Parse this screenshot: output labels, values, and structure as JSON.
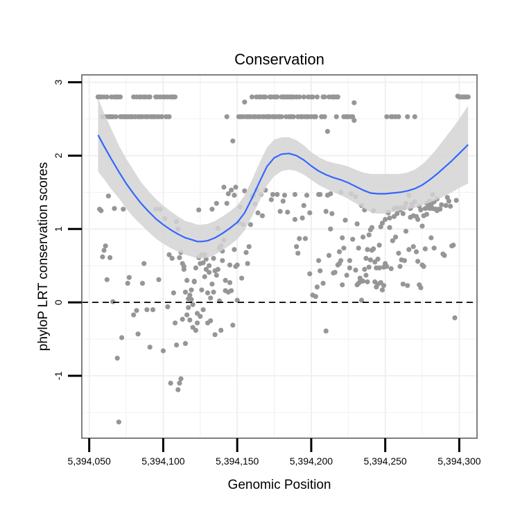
{
  "chart_data": {
    "type": "scatter",
    "title": "Conservation",
    "xlabel": "Genomic Position",
    "ylabel": "phyloP LRT conservation scores",
    "xlim": [
      5394045,
      5394312
    ],
    "ylim": [
      -1.85,
      3.1
    ],
    "x_ticks": [
      5394050,
      5394100,
      5394150,
      5394200,
      5394250,
      5394300
    ],
    "x_tick_labels": [
      "5,394,050",
      "5,394,100",
      "5,394,150",
      "5,394,200",
      "5,394,250",
      "5,394,300"
    ],
    "y_ticks": [
      -1,
      0,
      1,
      2,
      3
    ],
    "y_tick_labels": [
      "-1",
      "0",
      "1",
      "2",
      "3"
    ],
    "reference_line": {
      "y": 0,
      "style": "dashed"
    },
    "colors": {
      "points": "#969696",
      "smooth_line": "#3366ff",
      "confidence_band": "#d3d3d3",
      "grid": "#f0f0f0",
      "panel_border": "#7f7f7f"
    },
    "points_x": [
      5394056,
      5394057,
      5394058,
      5394059,
      5394060,
      5394061,
      5394062,
      5394063,
      5394064,
      5394065,
      5394066,
      5394067,
      5394068,
      5394069,
      5394070,
      5394071,
      5394072,
      5394073,
      5394074,
      5394075,
      5394076,
      5394077,
      5394078,
      5394079,
      5394080,
      5394081,
      5394082,
      5394083,
      5394084,
      5394085,
      5394086,
      5394087,
      5394088,
      5394089,
      5394090,
      5394091,
      5394092,
      5394093,
      5394094,
      5394095,
      5394096,
      5394097,
      5394098,
      5394099,
      5394100,
      5394101,
      5394102,
      5394103,
      5394104,
      5394105,
      5394106,
      5394107,
      5394108,
      5394109,
      5394110,
      5394111,
      5394112,
      5394113,
      5394114,
      5394115,
      5394116,
      5394117,
      5394118,
      5394119,
      5394120,
      5394121,
      5394122,
      5394123,
      5394124,
      5394125,
      5394126,
      5394127,
      5394128,
      5394129,
      5394130,
      5394131,
      5394132,
      5394133,
      5394134,
      5394135,
      5394136,
      5394137,
      5394138,
      5394139,
      5394140,
      5394141,
      5394142,
      5394143,
      5394144,
      5394145,
      5394146,
      5394147,
      5394148,
      5394149,
      5394150,
      5394151,
      5394152,
      5394153,
      5394154,
      5394155,
      5394156,
      5394157,
      5394158,
      5394159,
      5394160,
      5394161,
      5394162,
      5394163,
      5394164,
      5394165,
      5394166,
      5394167,
      5394168,
      5394169,
      5394170,
      5394171,
      5394172,
      5394173,
      5394174,
      5394175,
      5394176,
      5394177,
      5394178,
      5394179,
      5394180,
      5394181,
      5394182,
      5394183,
      5394184,
      5394185,
      5394186,
      5394187,
      5394188,
      5394189,
      5394190,
      5394191,
      5394192,
      5394193,
      5394194,
      5394195,
      5394196,
      5394197,
      5394198,
      5394199,
      5394200,
      5394201,
      5394202,
      5394203,
      5394204,
      5394205,
      5394206,
      5394207,
      5394208,
      5394209,
      5394210,
      5394211,
      5394212,
      5394213,
      5394214,
      5394215,
      5394216,
      5394217,
      5394218,
      5394219,
      5394220,
      5394221,
      5394222,
      5394223,
      5394224,
      5394225,
      5394226,
      5394227,
      5394228,
      5394229,
      5394230,
      5394231,
      5394232,
      5394233,
      5394234,
      5394235,
      5394236,
      5394237,
      5394238,
      5394239,
      5394240,
      5394241,
      5394242,
      5394243,
      5394244,
      5394245,
      5394246,
      5394247,
      5394248,
      5394249,
      5394250,
      5394251,
      5394252,
      5394253,
      5394254,
      5394255,
      5394256,
      5394257,
      5394258,
      5394259,
      5394260,
      5394261,
      5394262,
      5394263,
      5394264,
      5394265,
      5394266,
      5394267,
      5394268,
      5394269,
      5394270,
      5394271,
      5394272,
      5394273,
      5394274,
      5394275,
      5394276,
      5394277,
      5394278,
      5394279,
      5394280,
      5394281,
      5394282,
      5394283,
      5394284,
      5394285,
      5394286,
      5394287,
      5394288,
      5394289,
      5394290,
      5394291,
      5394292,
      5394293,
      5394294,
      5394295,
      5394296,
      5394297,
      5394298,
      5394299,
      5394300,
      5394301,
      5394302,
      5394303,
      5394304,
      5394305,
      5394306,
      5394056,
      5394057,
      5394058,
      5394059,
      5394060,
      5394061,
      5394062,
      5394063,
      5394064,
      5394065,
      5394066,
      5394067,
      5394068,
      5394069,
      5394070,
      5394071,
      5394072,
      5394073,
      5394074,
      5394075,
      5394076,
      5394077,
      5394078,
      5394079,
      5394080,
      5394081,
      5394082,
      5394083,
      5394084,
      5394085,
      5394086,
      5394087,
      5394088,
      5394089,
      5394090,
      5394091,
      5394092,
      5394093,
      5394094,
      5394095,
      5394096,
      5394097,
      5394098,
      5394099,
      5394100,
      5394101,
      5394102,
      5394103,
      5394104,
      5394105,
      5394106,
      5394107,
      5394108,
      5394109,
      5394110,
      5394111,
      5394112,
      5394113,
      5394114,
      5394115,
      5394116,
      5394117,
      5394118,
      5394119,
      5394120,
      5394121,
      5394122,
      5394123,
      5394124,
      5394125,
      5394126,
      5394127,
      5394128,
      5394129,
      5394130,
      5394131,
      5394132,
      5394133,
      5394134,
      5394135,
      5394136,
      5394137,
      5394138,
      5394139,
      5394140,
      5394141,
      5394142,
      5394143,
      5394144,
      5394145,
      5394146,
      5394147,
      5394148,
      5394149,
      5394150,
      5394151,
      5394152,
      5394153,
      5394154,
      5394155,
      5394156,
      5394157,
      5394158,
      5394159,
      5394160,
      5394161,
      5394162,
      5394163,
      5394164,
      5394165,
      5394166,
      5394167,
      5394168,
      5394169,
      5394170,
      5394171,
      5394172,
      5394173,
      5394174,
      5394175,
      5394176,
      5394177,
      5394178,
      5394179,
      5394180,
      5394181,
      5394182,
      5394183,
      5394184,
      5394185,
      5394186,
      5394187,
      5394188,
      5394189,
      5394190,
      5394191,
      5394192,
      5394193,
      5394194,
      5394195,
      5394196,
      5394197,
      5394198,
      5394199,
      5394200,
      5394201,
      5394202,
      5394203,
      5394204,
      5394205,
      5394206,
      5394207,
      5394208,
      5394209,
      5394210,
      5394211,
      5394212,
      5394213,
      5394214,
      5394215,
      5394216,
      5394217,
      5394218,
      5394219,
      5394220,
      5394221,
      5394222,
      5394223,
      5394224,
      5394225,
      5394226,
      5394227,
      5394228,
      5394229,
      5394230,
      5394231,
      5394232,
      5394233,
      5394234,
      5394235,
      5394236,
      5394237,
      5394238,
      5394239,
      5394240,
      5394241,
      5394242,
      5394243,
      5394244,
      5394245,
      5394246,
      5394247,
      5394248,
      5394249,
      5394250,
      5394251,
      5394252,
      5394253,
      5394254,
      5394255,
      5394256,
      5394257,
      5394258,
      5394259,
      5394260,
      5394261,
      5394262,
      5394263,
      5394264,
      5394265,
      5394266,
      5394267,
      5394268,
      5394269,
      5394270,
      5394271,
      5394272,
      5394273,
      5394274,
      5394275,
      5394276,
      5394277,
      5394278,
      5394279,
      5394280,
      5394281,
      5394282,
      5394283,
      5394284,
      5394285,
      5394286,
      5394287,
      5394288,
      5394289,
      5394290,
      5394291,
      5394292,
      5394293,
      5394294,
      5394295,
      5394296,
      5394297,
      5394298,
      5394299,
      5394300,
      5394301,
      5394302,
      5394303,
      5394304,
      5394305,
      5394306
    ],
    "points_y": [
      2.8,
      2.8,
      2.8,
      2.53,
      2.8,
      2.53,
      2.8,
      2.53,
      2.53,
      2.8,
      2.53,
      2.8,
      2.8,
      2.8,
      2.8,
      2.8,
      2.53,
      2.53,
      2.53,
      2.53,
      2.53,
      2.53,
      2.53,
      2.53,
      2.8,
      2.53,
      2.8,
      2.53,
      2.8,
      2.8,
      2.53,
      2.8,
      2.8,
      2.53,
      2.8,
      2.8,
      2.53,
      2.53,
      2.53,
      2.8,
      2.8,
      2.53,
      2.8,
      2.53,
      2.8,
      2.8,
      2.53,
      2.8,
      2.53,
      2.8,
      2.8,
      2.8,
      2.8,
      1.1,
      1.0,
      -1.1,
      0.68,
      0.53,
      0.49,
      0.14,
      0.3,
      -0.07,
      -0.24,
      0.17,
      -0.03,
      0.28,
      0.47,
      -0.15,
      0.61,
      -0.19,
      0.17,
      0.54,
      0.35,
      0.45,
      -0.28,
      0.41,
      0.06,
      0.25,
      0.14,
      -0.44,
      0.37,
      0.45,
      0.02,
      -0.38,
      0.57,
      0.85,
      0.16,
      1.35,
      0.14,
      0.51,
      0.16,
      -0.31,
      0.72,
      0.49,
      0.51,
      1.09,
      1.3,
      0.33,
      1.06,
      2.73,
      0.68,
      0.53,
      0.76,
      1.06,
      2.8,
      1.46,
      1.34,
      2.8,
      1.22,
      2.8,
      2.8,
      1.18,
      2.8,
      2.8,
      2.53,
      2.53,
      2.8,
      2.8,
      1.47,
      2.8,
      2.8,
      2.8,
      2.53,
      2.53,
      2.8,
      2.8,
      2.8,
      2.8,
      2.8,
      2.8,
      2.8,
      2.8,
      2.8,
      1.47,
      2.8,
      2.53,
      2.8,
      2.53,
      1.15,
      2.8,
      2.53,
      1.46,
      2.8,
      1.22,
      2.8,
      2.8,
      2.53,
      2.53,
      2.8,
      1.47,
      1.47,
      2.53,
      2.8,
      2.8,
      1.24,
      1.46,
      2.8,
      1.48,
      2.8,
      2.8,
      2.8,
      2.8,
      2.8,
      0.69,
      1.5,
      0.88,
      0.74,
      2.53,
      2.53,
      2.53,
      0.47,
      1.48,
      2.53,
      2.72,
      1.44,
      1.07,
      0.74,
      0.28,
      0.03,
      0.29,
      0.45,
      0.6,
      0.28,
      0.48,
      0.99,
      1.02,
      0.73,
      0.55,
      0.47,
      0.59,
      0.78,
      1.03,
      0.17,
      0.23,
      0.53,
      0.49,
      1.22,
      1.02,
      0.46,
      0.84,
      1.17,
      0.89,
      1.21,
      0.67,
      0.49,
      0.58,
      0.25,
      0.57,
      0.97,
      0.23,
      1.46,
      1.16,
      1.34,
      1.18,
      1.37,
      1.17,
      0.56,
      0.24,
      0.2,
      0.51,
      0.49,
      1.28,
      1.35,
      1.29,
      1.38,
      1.33,
      1.47,
      1.37,
      1.27,
      1.41,
      1.27,
      1.27,
      1.33,
      0.66,
      0.64,
      1.32,
      1.43,
      1.38,
      1.31,
      0.77,
      0.78,
      -0.21,
      1.39,
      2.81,
      2.8,
      2.8,
      2.8,
      2.8,
      2.8,
      2.8,
      2.8,
      2.8,
      1.27,
      1.25,
      0.62,
      0.71,
      0.77,
      0.31,
      1.45,
      0.61,
      2.53,
      0.01,
      1.28,
      2.53,
      -0.76,
      -1.63,
      2.53,
      -0.48,
      1.27,
      2.53,
      2.53,
      0.26,
      0.34,
      2.53,
      2.53,
      -0.17,
      2.53,
      -0.11,
      -0.43,
      2.53,
      2.53,
      0.26,
      0.53,
      2.53,
      -0.1,
      2.53,
      -0.61,
      2.53,
      -0.1,
      2.53,
      1.27,
      2.53,
      0.31,
      1.27,
      2.53,
      -0.66,
      1.14,
      2.53,
      -0.06,
      0.65,
      -1.1,
      0.6,
      0.13,
      -0.28,
      -0.58,
      -1.19,
      0.61,
      -1.04,
      -0.23,
      0.45,
      -0.56,
      -0.17,
      0.05,
      0.1,
      0.04,
      -0.34,
      0.29,
      -0.38,
      -0.28,
      1.26,
      0.53,
      0.65,
      -0.1,
      0.65,
      0.59,
      0.13,
      0.5,
      -0.25,
      1.27,
      0.6,
      0.43,
      1.35,
      1.01,
      0.74,
      0.77,
      0.7,
      1.57,
      0.3,
      2.53,
      1.48,
      0.27,
      1.53,
      2.2,
      1.46,
      1.57,
      0.03,
      2.53,
      2.53,
      2.53,
      2.53,
      1.52,
      2.53,
      2.53,
      2.53,
      2.53,
      1.44,
      2.53,
      2.53,
      1.53,
      2.53,
      2.53,
      1.47,
      2.53,
      2.53,
      1.53,
      2.53,
      2.53,
      2.53,
      1.4,
      2.53,
      2.53,
      2.53,
      1.47,
      2.53,
      1.24,
      2.53,
      1.38,
      1.46,
      2.53,
      1.23,
      2.53,
      2.53,
      2.53,
      2.53,
      1.13,
      0.76,
      0.67,
      0.87,
      2.53,
      2.53,
      1.32,
      0.87,
      2.53,
      2.53,
      0.39,
      2.53,
      0.1,
      2.53,
      0.08,
      0.21,
      0.57,
      0.43,
      2.53,
      0.26,
      2.53,
      -0.39,
      2.33,
      0.64,
      1.0,
      1.21,
      0.4,
      0.41,
      2.53,
      0.51,
      0.53,
      0.57,
      0.24,
      2.53,
      1.12,
      0.37,
      2.53,
      0.57,
      2.53,
      0.86,
      2.48,
      0.44,
      0.24,
      0.26,
      0.33,
      1.32,
      0.89,
      1.26,
      0.37,
      0.72,
      0.92,
      0.58,
      0.71,
      1.25,
      0.28,
      0.21,
      0.25,
      0.47,
      0.27,
      1.08,
      0.48,
      1.13,
      2.53,
      1.23,
      1.15,
      2.53,
      2.53,
      1.28,
      2.53,
      1.29,
      2.53,
      1.26,
      1.29,
      1.21,
      1.29,
      1.35,
      2.53,
      0.72,
      1.28,
      1.31,
      0.76,
      2.53,
      0.69,
      1.13,
      1.31,
      1.26,
      1.04,
      1.18,
      0.73,
      1.2,
      1.3,
      1.28,
      0.88,
      1.28,
      0.74,
      1.27,
      1.25
    ],
    "smooth_x": [
      5394056,
      5394060,
      5394065,
      5394070,
      5394075,
      5394080,
      5394085,
      5394090,
      5394095,
      5394100,
      5394105,
      5394110,
      5394115,
      5394120,
      5394123,
      5394126,
      5394130,
      5394135,
      5394140,
      5394145,
      5394150,
      5394155,
      5394160,
      5394165,
      5394170,
      5394175,
      5394180,
      5394185,
      5394190,
      5394195,
      5394200,
      5394205,
      5394210,
      5394215,
      5394220,
      5394225,
      5394230,
      5394235,
      5394240,
      5394245,
      5394250,
      5394255,
      5394260,
      5394265,
      5394270,
      5394275,
      5394280,
      5394285,
      5394290,
      5394295,
      5394300,
      5394306
    ],
    "smooth_y": [
      2.28,
      2.13,
      1.95,
      1.78,
      1.62,
      1.48,
      1.35,
      1.24,
      1.14,
      1.06,
      0.99,
      0.93,
      0.88,
      0.85,
      0.83,
      0.83,
      0.84,
      0.88,
      0.94,
      1.01,
      1.09,
      1.22,
      1.42,
      1.64,
      1.85,
      1.97,
      2.02,
      2.03,
      2.0,
      1.94,
      1.86,
      1.79,
      1.74,
      1.7,
      1.67,
      1.63,
      1.58,
      1.53,
      1.49,
      1.48,
      1.48,
      1.49,
      1.5,
      1.52,
      1.55,
      1.6,
      1.67,
      1.75,
      1.84,
      1.93,
      2.03,
      2.15
    ],
    "band_lower": [
      1.78,
      1.68,
      1.54,
      1.42,
      1.28,
      1.16,
      1.06,
      0.96,
      0.87,
      0.8,
      0.74,
      0.69,
      0.65,
      0.62,
      0.6,
      0.6,
      0.61,
      0.65,
      0.71,
      0.78,
      0.86,
      0.98,
      1.17,
      1.38,
      1.59,
      1.72,
      1.79,
      1.81,
      1.79,
      1.74,
      1.67,
      1.6,
      1.55,
      1.5,
      1.46,
      1.41,
      1.35,
      1.29,
      1.23,
      1.21,
      1.21,
      1.23,
      1.25,
      1.27,
      1.29,
      1.32,
      1.36,
      1.4,
      1.45,
      1.5,
      1.56,
      1.62
    ],
    "band_upper": [
      2.78,
      2.58,
      2.36,
      2.14,
      1.96,
      1.8,
      1.64,
      1.52,
      1.41,
      1.32,
      1.24,
      1.17,
      1.11,
      1.08,
      1.06,
      1.06,
      1.07,
      1.11,
      1.17,
      1.24,
      1.32,
      1.46,
      1.67,
      1.9,
      2.11,
      2.22,
      2.25,
      2.25,
      2.21,
      2.14,
      2.05,
      1.98,
      1.93,
      1.9,
      1.88,
      1.85,
      1.81,
      1.77,
      1.75,
      1.75,
      1.75,
      1.75,
      1.75,
      1.77,
      1.81,
      1.88,
      1.98,
      2.1,
      2.23,
      2.36,
      2.5,
      2.68
    ]
  }
}
